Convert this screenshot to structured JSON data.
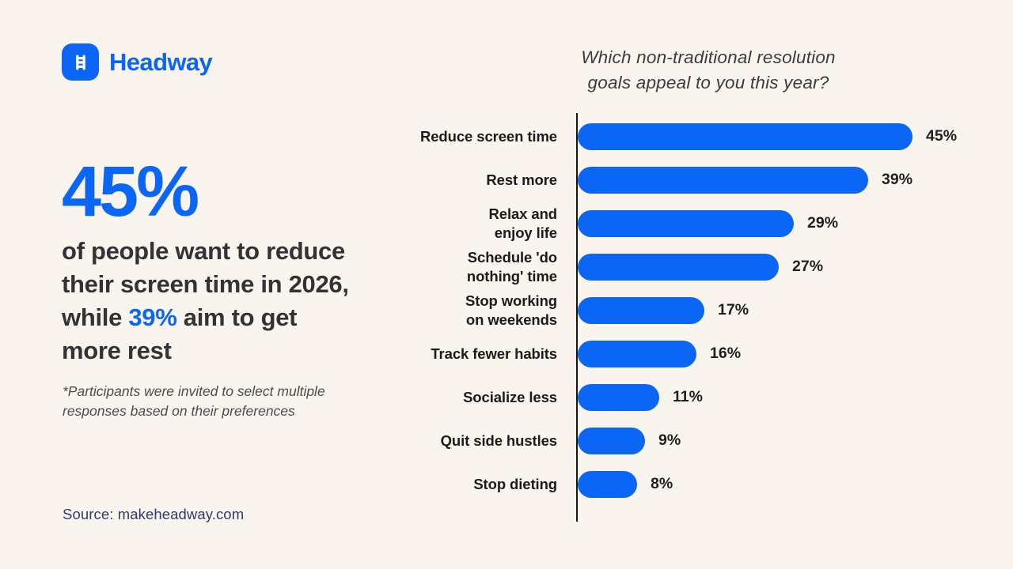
{
  "page": {
    "background": "#FAF4EF",
    "accent": "#0B66F6",
    "headline_text_color": "#333333",
    "source_text_color": "#2F3A6E"
  },
  "header": {
    "brand": "Headway",
    "logo_icon": "ladder-icon"
  },
  "stat": {
    "value": "45%",
    "description": {
      "prefix": "of people want to reduce\ntheir screen time in 2026,\nwhile ",
      "highlight": "39%",
      "suffix": " aim to get\nmore rest"
    },
    "footnote": "*Participants were invited to select multiple\nresponses based on their preferences"
  },
  "source": {
    "label": "Source: makeheadway.com"
  },
  "chart_data": {
    "type": "bar",
    "orientation": "horizontal",
    "title": "Which non-traditional resolution\ngoals appeal to you this year?",
    "categories": [
      "Reduce screen time",
      "Rest more",
      "Relax and\nenjoy life",
      "Schedule 'do\nnothing' time",
      "Stop working\non weekends",
      "Track fewer habits",
      "Socialize less",
      "Quit side hustles",
      "Stop dieting"
    ],
    "values": [
      45,
      39,
      29,
      27,
      17,
      16,
      11,
      9,
      8
    ],
    "unit": "%",
    "bar_color": "#0B66F6",
    "xlim": [
      0,
      45
    ],
    "grid": false,
    "legend": "none",
    "value_labels_shown": true
  }
}
